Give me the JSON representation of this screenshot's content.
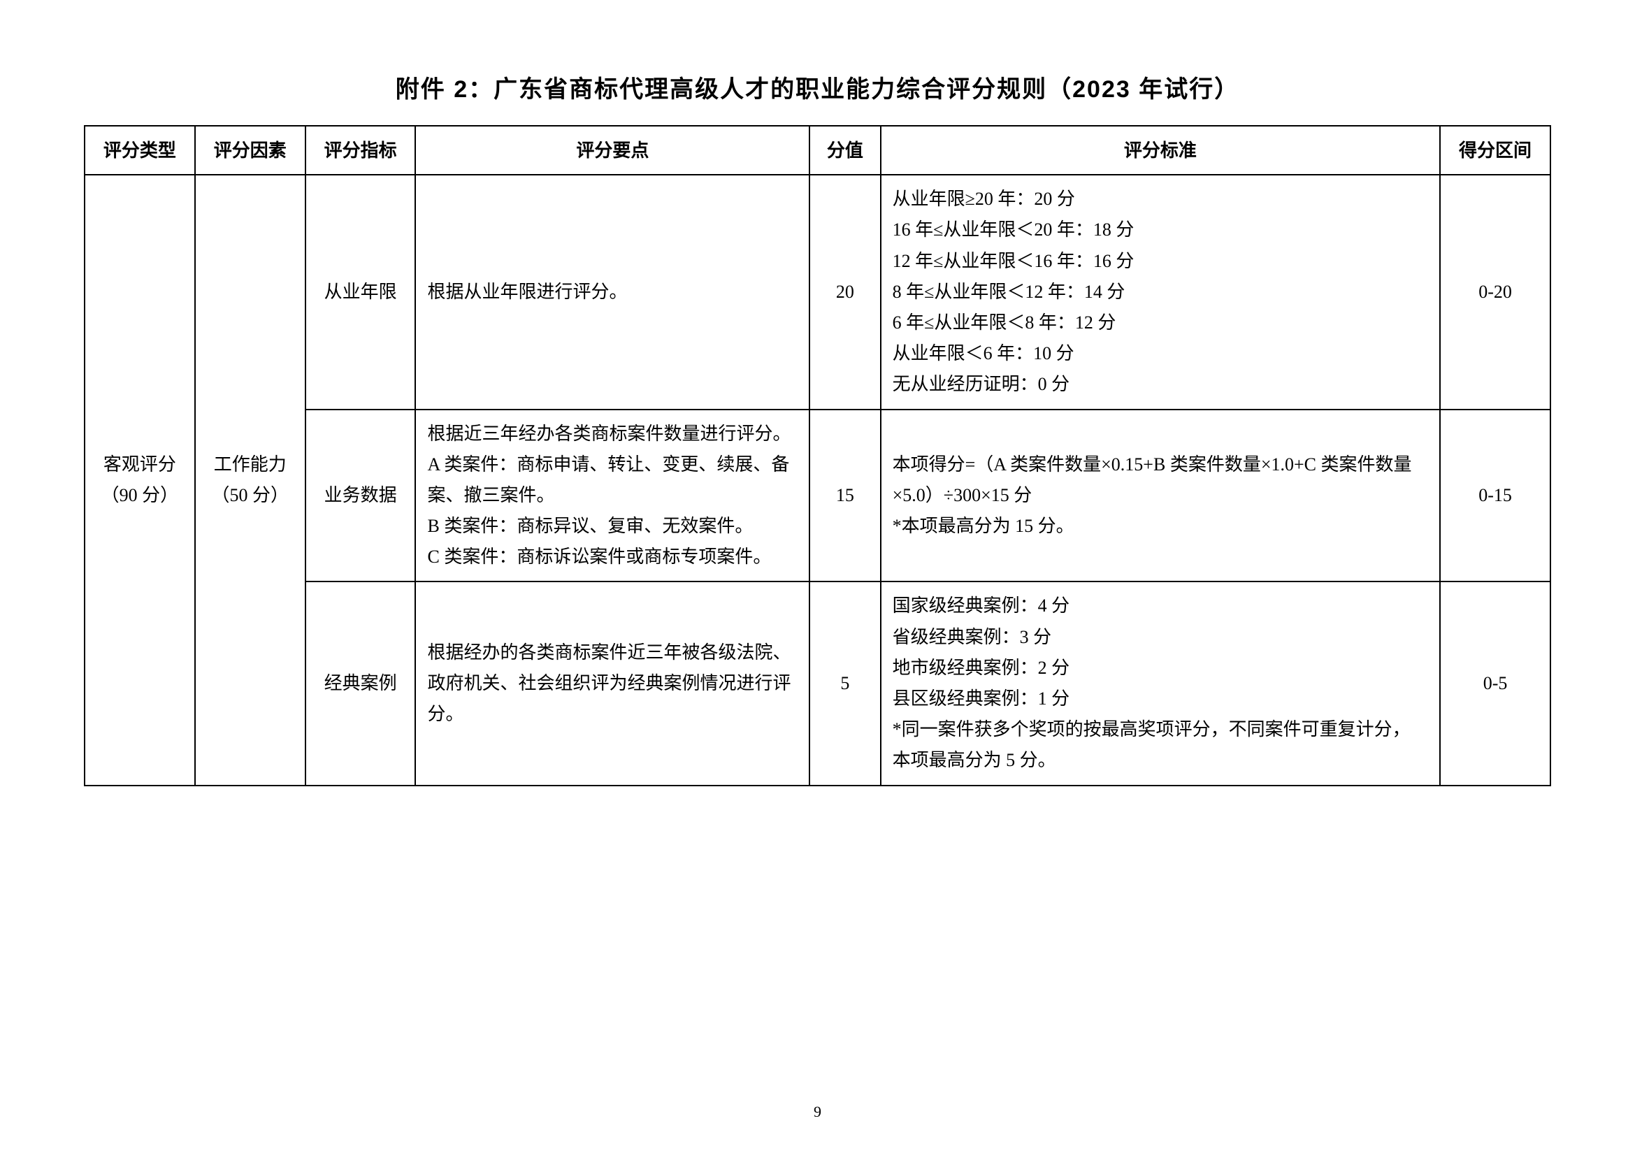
{
  "title": "附件 2：广东省商标代理高级人才的职业能力综合评分规则（2023 年试行）",
  "headers": {
    "col1": "评分类型",
    "col2": "评分因素",
    "col3": "评分指标",
    "col4": "评分要点",
    "col5": "分值",
    "col6": "评分标准",
    "col7": "得分区间"
  },
  "rows": [
    {
      "type": "客观评分（90 分）",
      "factor": "工作能力（50 分）",
      "indicator": "从业年限",
      "key_point": "根据从业年限进行评分。",
      "score": "20",
      "criteria": "从业年限≥20 年：20 分\n16 年≤从业年限＜20 年：18 分\n12 年≤从业年限＜16 年：16 分\n8 年≤从业年限＜12 年：14 分\n6 年≤从业年限＜8 年：12 分\n从业年限＜6 年：10 分\n无从业经历证明：0 分",
      "range": "0-20"
    },
    {
      "indicator": "业务数据",
      "key_point": "根据近三年经办各类商标案件数量进行评分。\nA 类案件：商标申请、转让、变更、续展、备案、撤三案件。\nB 类案件：商标异议、复审、无效案件。\nC 类案件：商标诉讼案件或商标专项案件。",
      "score": "15",
      "criteria": "本项得分=（A 类案件数量×0.15+B 类案件数量×1.0+C 类案件数量×5.0）÷300×15 分\n*本项最高分为 15 分。",
      "range": "0-15"
    },
    {
      "indicator": "经典案例",
      "key_point": "根据经办的各类商标案件近三年被各级法院、政府机关、社会组织评为经典案例情况进行评分。",
      "score": "5",
      "criteria": "国家级经典案例：4 分\n省级经典案例：3 分\n地市级经典案例：2 分\n县区级经典案例：1 分\n*同一案件获多个奖项的按最高奖项评分，不同案件可重复计分，本项最高分为 5 分。",
      "range": "0-5"
    }
  ],
  "page_number": "9"
}
